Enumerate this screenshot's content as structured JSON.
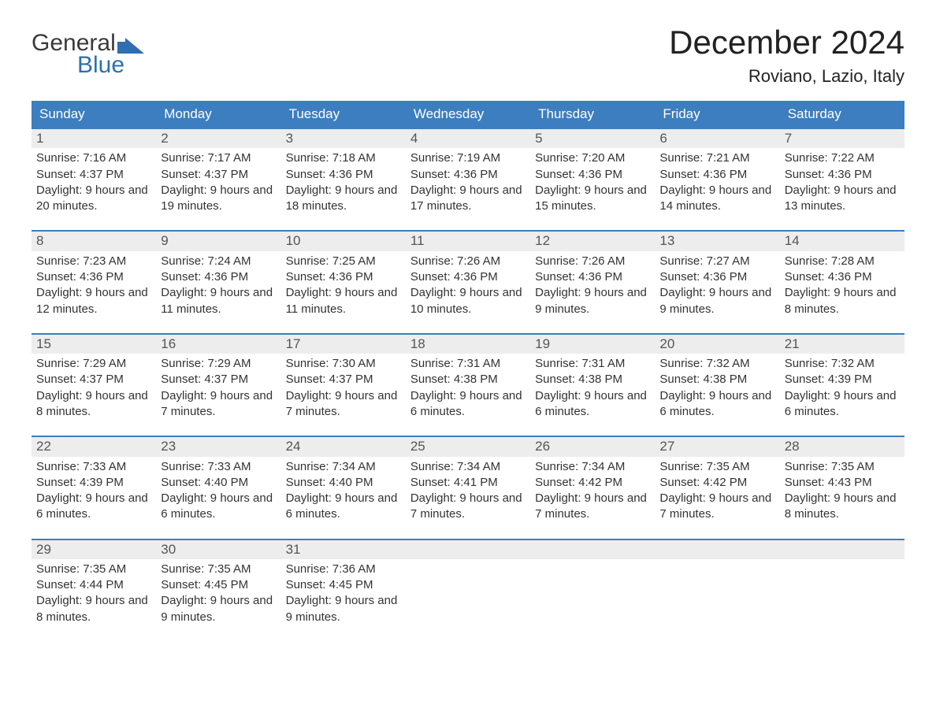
{
  "logo": {
    "word1": "General",
    "word2": "Blue"
  },
  "title": "December 2024",
  "location": "Roviano, Lazio, Italy",
  "colors": {
    "header_bg": "#3c7ebf",
    "header_text": "#ffffff",
    "strip_bg": "#ededed",
    "strip_border": "#3c7ebf",
    "body_text": "#333333",
    "logo_blue": "#2d6fb0",
    "logo_gray": "#3a3a3a",
    "page_bg": "#ffffff"
  },
  "dow": [
    "Sunday",
    "Monday",
    "Tuesday",
    "Wednesday",
    "Thursday",
    "Friday",
    "Saturday"
  ],
  "weeks": [
    [
      {
        "n": "1",
        "sr": "7:16 AM",
        "ss": "4:37 PM",
        "dl": "9 hours and 20 minutes."
      },
      {
        "n": "2",
        "sr": "7:17 AM",
        "ss": "4:37 PM",
        "dl": "9 hours and 19 minutes."
      },
      {
        "n": "3",
        "sr": "7:18 AM",
        "ss": "4:36 PM",
        "dl": "9 hours and 18 minutes."
      },
      {
        "n": "4",
        "sr": "7:19 AM",
        "ss": "4:36 PM",
        "dl": "9 hours and 17 minutes."
      },
      {
        "n": "5",
        "sr": "7:20 AM",
        "ss": "4:36 PM",
        "dl": "9 hours and 15 minutes."
      },
      {
        "n": "6",
        "sr": "7:21 AM",
        "ss": "4:36 PM",
        "dl": "9 hours and 14 minutes."
      },
      {
        "n": "7",
        "sr": "7:22 AM",
        "ss": "4:36 PM",
        "dl": "9 hours and 13 minutes."
      }
    ],
    [
      {
        "n": "8",
        "sr": "7:23 AM",
        "ss": "4:36 PM",
        "dl": "9 hours and 12 minutes."
      },
      {
        "n": "9",
        "sr": "7:24 AM",
        "ss": "4:36 PM",
        "dl": "9 hours and 11 minutes."
      },
      {
        "n": "10",
        "sr": "7:25 AM",
        "ss": "4:36 PM",
        "dl": "9 hours and 11 minutes."
      },
      {
        "n": "11",
        "sr": "7:26 AM",
        "ss": "4:36 PM",
        "dl": "9 hours and 10 minutes."
      },
      {
        "n": "12",
        "sr": "7:26 AM",
        "ss": "4:36 PM",
        "dl": "9 hours and 9 minutes."
      },
      {
        "n": "13",
        "sr": "7:27 AM",
        "ss": "4:36 PM",
        "dl": "9 hours and 9 minutes."
      },
      {
        "n": "14",
        "sr": "7:28 AM",
        "ss": "4:36 PM",
        "dl": "9 hours and 8 minutes."
      }
    ],
    [
      {
        "n": "15",
        "sr": "7:29 AM",
        "ss": "4:37 PM",
        "dl": "9 hours and 8 minutes."
      },
      {
        "n": "16",
        "sr": "7:29 AM",
        "ss": "4:37 PM",
        "dl": "9 hours and 7 minutes."
      },
      {
        "n": "17",
        "sr": "7:30 AM",
        "ss": "4:37 PM",
        "dl": "9 hours and 7 minutes."
      },
      {
        "n": "18",
        "sr": "7:31 AM",
        "ss": "4:38 PM",
        "dl": "9 hours and 6 minutes."
      },
      {
        "n": "19",
        "sr": "7:31 AM",
        "ss": "4:38 PM",
        "dl": "9 hours and 6 minutes."
      },
      {
        "n": "20",
        "sr": "7:32 AM",
        "ss": "4:38 PM",
        "dl": "9 hours and 6 minutes."
      },
      {
        "n": "21",
        "sr": "7:32 AM",
        "ss": "4:39 PM",
        "dl": "9 hours and 6 minutes."
      }
    ],
    [
      {
        "n": "22",
        "sr": "7:33 AM",
        "ss": "4:39 PM",
        "dl": "9 hours and 6 minutes."
      },
      {
        "n": "23",
        "sr": "7:33 AM",
        "ss": "4:40 PM",
        "dl": "9 hours and 6 minutes."
      },
      {
        "n": "24",
        "sr": "7:34 AM",
        "ss": "4:40 PM",
        "dl": "9 hours and 6 minutes."
      },
      {
        "n": "25",
        "sr": "7:34 AM",
        "ss": "4:41 PM",
        "dl": "9 hours and 7 minutes."
      },
      {
        "n": "26",
        "sr": "7:34 AM",
        "ss": "4:42 PM",
        "dl": "9 hours and 7 minutes."
      },
      {
        "n": "27",
        "sr": "7:35 AM",
        "ss": "4:42 PM",
        "dl": "9 hours and 7 minutes."
      },
      {
        "n": "28",
        "sr": "7:35 AM",
        "ss": "4:43 PM",
        "dl": "9 hours and 8 minutes."
      }
    ],
    [
      {
        "n": "29",
        "sr": "7:35 AM",
        "ss": "4:44 PM",
        "dl": "9 hours and 8 minutes."
      },
      {
        "n": "30",
        "sr": "7:35 AM",
        "ss": "4:45 PM",
        "dl": "9 hours and 9 minutes."
      },
      {
        "n": "31",
        "sr": "7:36 AM",
        "ss": "4:45 PM",
        "dl": "9 hours and 9 minutes."
      },
      null,
      null,
      null,
      null
    ]
  ],
  "labels": {
    "sunrise": "Sunrise: ",
    "sunset": "Sunset: ",
    "daylight": "Daylight: "
  }
}
